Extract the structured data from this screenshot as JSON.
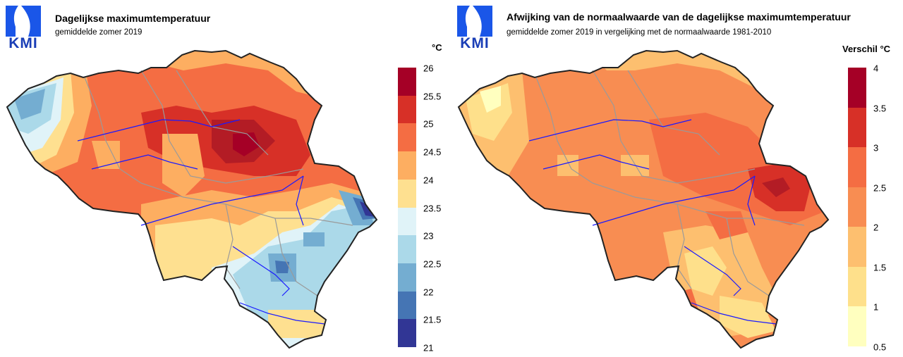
{
  "left": {
    "logo_text": "KMI",
    "title": "Dagelijkse maximumtemperatuur",
    "subtitle": "gemiddelde zomer 2019",
    "unit": "°C",
    "legend": {
      "ticks": [
        "26",
        "25.5",
        "25",
        "24.5",
        "24",
        "23.5",
        "23",
        "22.5",
        "22",
        "21.5",
        "21"
      ],
      "colors": [
        "#a50026",
        "#d73027",
        "#f46d43",
        "#fdae61",
        "#fee090",
        "#e0f3f8",
        "#abd9e9",
        "#74add1",
        "#4575b4",
        "#313695"
      ]
    }
  },
  "right": {
    "logo_text": "KMI",
    "title": "Afwijking van de normaalwaarde van de dagelijkse maximumtemperatuur",
    "subtitle": "gemiddelde zomer 2019 in vergelijking met de normaalwaarde 1981-2010",
    "unit": "Verschil °C",
    "legend": {
      "ticks": [
        "4",
        "3.5",
        "3",
        "2.5",
        "2",
        "1.5",
        "1",
        "0.5"
      ],
      "colors": [
        "#a50026",
        "#d73027",
        "#f46d43",
        "#f88d52",
        "#fdbf6f",
        "#fee08b",
        "#ffffbf"
      ]
    }
  },
  "colors": {
    "border": "#222222",
    "rivers": "#1a1aff",
    "provinces": "#9a9a9a",
    "logo": "#1a56e8"
  }
}
